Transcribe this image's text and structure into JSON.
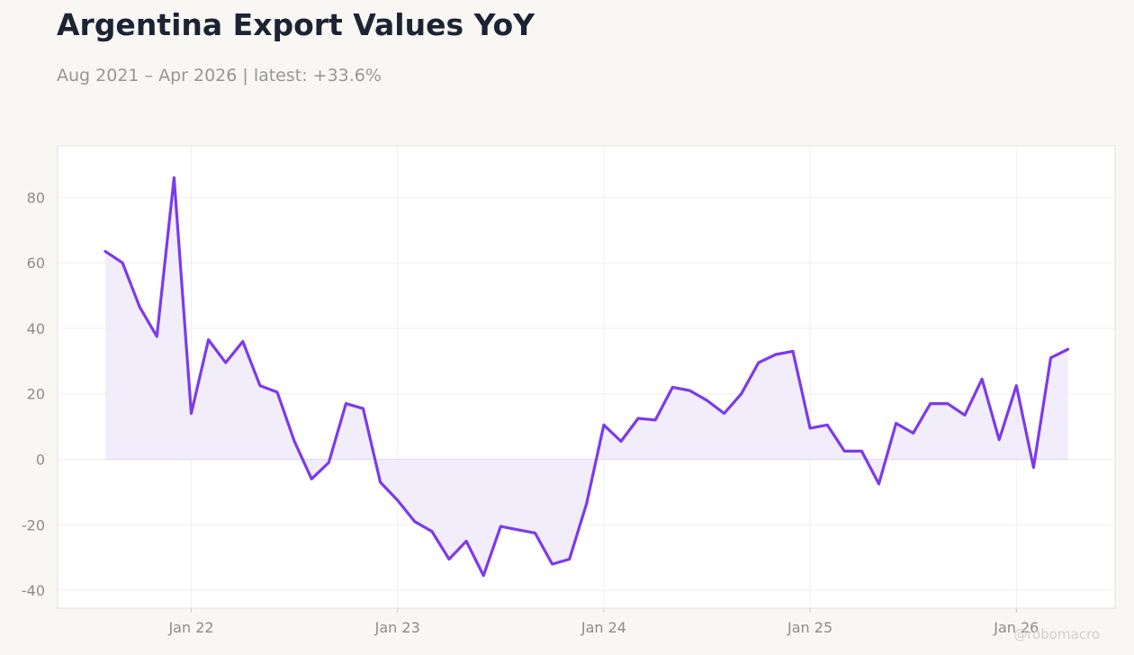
{
  "header": {
    "title": "Argentina Export Values YoY",
    "subtitle": "Aug 2021 – Apr 2026 | latest: +33.6%"
  },
  "watermark": "@robomacro",
  "colors": {
    "line": "#7c3aed",
    "fill": "#f0ebfb",
    "background": "#f8f7f4",
    "plot_background": "#ffffff"
  },
  "chart_data": {
    "type": "area",
    "title": "Argentina Export Values YoY",
    "subtitle": "Aug 2021 – Apr 2026 | latest: +33.6%",
    "xlabel": "",
    "ylabel": "",
    "ylim": [
      -45,
      95
    ],
    "yticks": [
      -40,
      -20,
      0,
      20,
      40,
      60,
      80
    ],
    "ytick_labels": [
      "-40",
      "-20",
      "0",
      "20",
      "40",
      "60",
      "80"
    ],
    "xticks": [
      "Jan 22",
      "Jan 23",
      "Jan 24",
      "Jan 25",
      "Jan 26"
    ],
    "xtick_dates": [
      "2022-01",
      "2023-01",
      "2024-01",
      "2025-01",
      "2026-01"
    ],
    "grid": true,
    "legend": "none",
    "series": [
      {
        "x": [
          "2021-08",
          "2021-09",
          "2021-10",
          "2021-11",
          "2021-12",
          "2022-01",
          "2022-02",
          "2022-03",
          "2022-04",
          "2022-05",
          "2022-06",
          "2022-07",
          "2022-08",
          "2022-09",
          "2022-10",
          "2022-11",
          "2022-12",
          "2023-01",
          "2023-02",
          "2023-03",
          "2023-04",
          "2023-05",
          "2023-06",
          "2023-07",
          "2023-08",
          "2023-09",
          "2023-10",
          "2023-11",
          "2023-12",
          "2024-01",
          "2024-02",
          "2024-03",
          "2024-04",
          "2024-05",
          "2024-06",
          "2024-07",
          "2024-08",
          "2024-09",
          "2024-10",
          "2024-11",
          "2024-12",
          "2025-01",
          "2025-02",
          "2025-03",
          "2025-04",
          "2025-05",
          "2025-06",
          "2025-07",
          "2025-08",
          "2025-09",
          "2025-10",
          "2025-11",
          "2025-12",
          "2026-01",
          "2026-02",
          "2026-03",
          "2026-04"
        ],
        "values": [
          63.5,
          60.0,
          46.5,
          37.5,
          86.0,
          14.0,
          36.5,
          29.5,
          36.0,
          22.5,
          20.5,
          5.5,
          -6.0,
          -1.0,
          17.0,
          15.5,
          -7.0,
          -12.5,
          -19.0,
          -22.0,
          -30.5,
          -25.0,
          -35.5,
          -20.5,
          -21.5,
          -22.5,
          -32.0,
          -30.5,
          -13.5,
          10.5,
          5.5,
          12.5,
          12.0,
          22.0,
          21.0,
          18.0,
          14.0,
          20.0,
          29.5,
          32.0,
          33.0,
          9.5,
          10.5,
          2.5,
          2.5,
          -7.5,
          11.0,
          8.0,
          17.0,
          17.0,
          13.5,
          24.5,
          6.0,
          22.5,
          -2.5,
          31.0,
          33.6
        ]
      }
    ]
  }
}
